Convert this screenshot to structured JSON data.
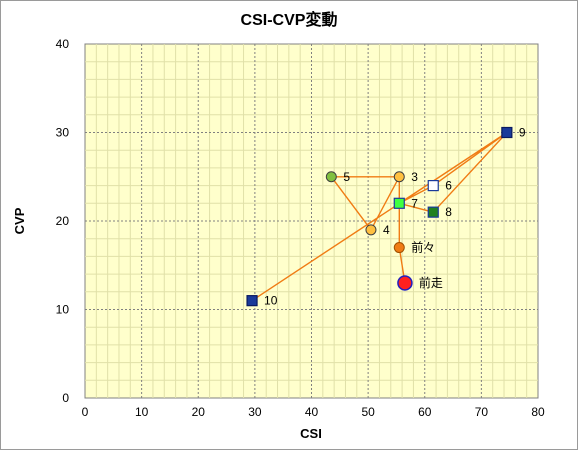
{
  "chart_data": {
    "type": "scatter",
    "title": "CSI-CVP変動",
    "xlabel": "CSI",
    "ylabel": "CVP",
    "xlim": [
      0,
      80
    ],
    "ylim": [
      0,
      40
    ],
    "x_ticks": [
      "0",
      "10",
      "20",
      "30",
      "40",
      "50",
      "60",
      "70",
      "80"
    ],
    "y_ticks": [
      "0",
      "10",
      "20",
      "30",
      "40"
    ],
    "grid": true,
    "colors": {
      "plot_bg": "#ffffcc",
      "line": "#f07c14",
      "grid_major": "#808080",
      "grid_minor": "#e0e0a8"
    },
    "points": [
      {
        "label": "前走",
        "x": 56.5,
        "y": 13,
        "marker": "circle-large",
        "fill": "#ff2020",
        "stroke": "#2020c0"
      },
      {
        "label": "前々",
        "x": 55.5,
        "y": 17,
        "marker": "circle",
        "fill": "#f07c14",
        "stroke": "#a05000"
      },
      {
        "label": "3",
        "x": 55.5,
        "y": 25,
        "marker": "circle",
        "fill": "#ffc040",
        "stroke": "#404040"
      },
      {
        "label": "4",
        "x": 50.5,
        "y": 19,
        "marker": "circle",
        "fill": "#ffc040",
        "stroke": "#404040"
      },
      {
        "label": "5",
        "x": 43.5,
        "y": 25,
        "marker": "circle",
        "fill": "#80c040",
        "stroke": "#404040"
      },
      {
        "label": "6",
        "x": 61.5,
        "y": 24,
        "marker": "square",
        "fill": "#ffffff",
        "stroke": "#1a3a9a"
      },
      {
        "label": "7",
        "x": 55.5,
        "y": 22,
        "marker": "square",
        "fill": "#40ff40",
        "stroke": "#1a3a9a"
      },
      {
        "label": "8",
        "x": 61.5,
        "y": 21,
        "marker": "square",
        "fill": "#208020",
        "stroke": "#1a3a9a"
      },
      {
        "label": "9",
        "x": 74.5,
        "y": 30,
        "marker": "square",
        "fill": "#1a3a9a",
        "stroke": "#0a1a60"
      },
      {
        "label": "10",
        "x": 29.5,
        "y": 11,
        "marker": "square",
        "fill": "#1a3a9a",
        "stroke": "#0a1a60"
      }
    ],
    "path_order": [
      "前走",
      "前々",
      "3",
      "4",
      "5",
      "3",
      "7",
      "6",
      "9",
      "7",
      "8",
      "9",
      "10"
    ]
  }
}
